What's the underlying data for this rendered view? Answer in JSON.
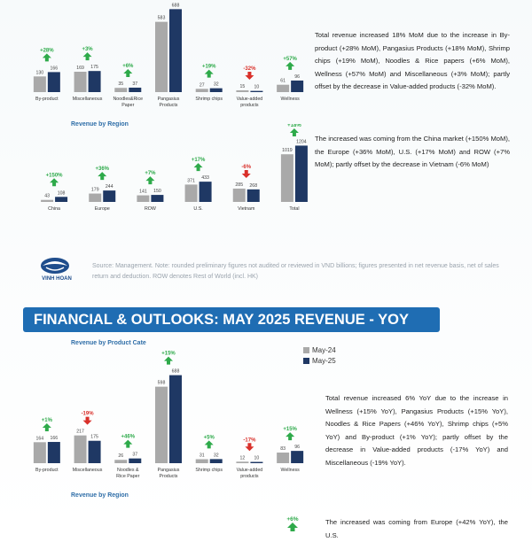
{
  "mom": {
    "product_chart": {
      "type": "bar",
      "categories": [
        "By-product",
        "Miscellaneous",
        "Noodles&Rice Paper",
        "Pangasius Products",
        "Shrimp chips",
        "Value-added products",
        "Wellness"
      ],
      "series": [
        {
          "name": "",
          "values": [
            130,
            169,
            35,
            583,
            27,
            15,
            61
          ]
        },
        {
          "name": "",
          "values": [
            166,
            175,
            37,
            688,
            32,
            10,
            96
          ]
        }
      ],
      "changes": [
        "+28%",
        "+3%",
        "+6%",
        "",
        "+19%",
        "-32%",
        "+57%"
      ],
      "ylim": [
        0,
        720
      ],
      "title": "",
      "xlabel": "",
      "ylabel": ""
    },
    "region_title": "Revenue by Region",
    "region_chart": {
      "type": "bar",
      "categories": [
        "China",
        "Europe",
        "ROW",
        "U.S.",
        "Vietnam",
        "Total"
      ],
      "series": [
        {
          "name": "",
          "values": [
            43,
            179,
            141,
            371,
            285,
            1019
          ]
        },
        {
          "name": "",
          "values": [
            108,
            244,
            150,
            433,
            268,
            1204
          ]
        }
      ],
      "changes": [
        "+150%",
        "+36%",
        "+7%",
        "+17%",
        "-6%",
        "+18%"
      ],
      "ylim": [
        0,
        1250
      ],
      "title": "",
      "xlabel": "",
      "ylabel": ""
    },
    "text1": "Total revenue increased 18% MoM due to the increase in By-product (+28% MoM), Pangasius Products (+18% MoM), Shrimp chips (+19% MoM), Noodles & Rice papers (+6% MoM), Wellness (+57% MoM) and Miscellaneous (+3% MoM); partly offset by the decrease in Value-added products (-32% MoM).",
    "text2": "The increased was coming from the China market (+150% MoM), the Europe (+36% MoM), U.S. (+17% MoM) and ROW (+7% MoM); partly offset by the decrease in Vietnam (-6% MoM)"
  },
  "logo_text": "VINH HOAN",
  "source": "Source: Management. Note: rounded preliminary figures not audited or reviewed in VND billions; figures presented in net revenue basis, net of sales return and deduction. ROW denotes Rest of World (incl. HK)",
  "banner": "FINANCIAL & OUTLOOKS: MAY 2025 REVENUE - YOY",
  "yoy": {
    "product_title": "Revenue by Product Cate",
    "legend": [
      "May-24",
      "May-25"
    ],
    "product_chart": {
      "type": "bar",
      "categories": [
        "By-product",
        "Miscellaneous",
        "Noodles & Rice Paper",
        "Pangasius Products",
        "Shrimp chips",
        "Value-added products",
        "Wellness"
      ],
      "series": [
        {
          "name": "May-24",
          "values": [
            164,
            217,
            26,
            598,
            31,
            12,
            83
          ]
        },
        {
          "name": "May-25",
          "values": [
            166,
            175,
            37,
            688,
            32,
            10,
            96
          ]
        }
      ],
      "changes": [
        "+1%",
        "-19%",
        "+46%",
        "+15%",
        "+5%",
        "-17%",
        "+15%"
      ],
      "ylim": [
        0,
        720
      ],
      "title": "",
      "xlabel": "",
      "ylabel": ""
    },
    "region_title": "Revenue by Region",
    "region_partial_change": "+6%",
    "text1": "Total revenue increased 6% YoY due to the increase in Wellness (+15% YoY), Pangasius Products (+15% YoY), Noodles & Rice Papers (+46% YoY), Shrimp chips (+5% YoY) and By-product (+1% YoY); partly offset by the decrease in Value-added products (-17% YoY) and Miscellaneous (-19% YoY).",
    "text2": "The increased was coming from Europe (+42% YoY), the U.S."
  },
  "colors": {
    "prev": "#a9a9a9",
    "curr": "#1f3864",
    "up": "#2eaa4a",
    "down": "#d9302a",
    "title": "#2f6ea8",
    "banner": "#1f6db3"
  }
}
